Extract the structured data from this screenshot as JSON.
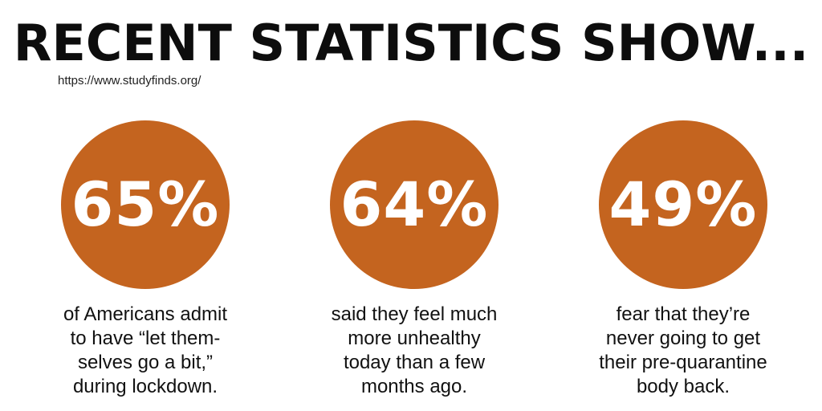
{
  "title": "RECENT STATISTICS SHOW...",
  "source": "https://www.studyfinds.org/",
  "colors": {
    "circle": "#c4641f",
    "percent_text": "#ffffff",
    "caption_text": "#111111"
  },
  "stats": [
    {
      "percent": "65%",
      "caption_lines": [
        "of Americans admit",
        "to have “let them-",
        "selves go a bit,”",
        "during lockdown."
      ]
    },
    {
      "percent": "64%",
      "caption_lines": [
        "said they feel much",
        "more unhealthy",
        "today than a few",
        "months ago."
      ]
    },
    {
      "percent": "49%",
      "caption_lines": [
        "fear that they’re",
        "never going to get",
        "their pre-quarantine",
        "body back."
      ]
    }
  ]
}
